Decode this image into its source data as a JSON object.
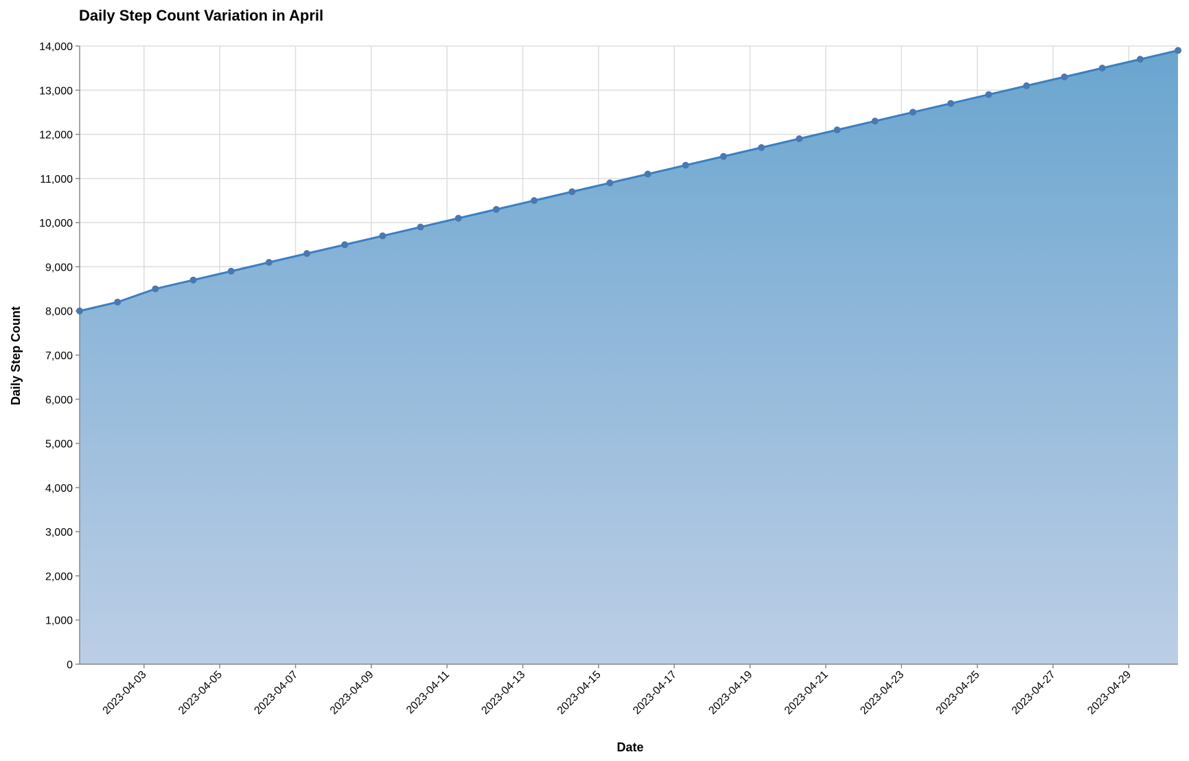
{
  "chart_data": {
    "type": "area",
    "title": "Daily Step Count Variation in April",
    "xlabel": "Date",
    "ylabel": "Daily Step Count",
    "ylim": [
      0,
      14000
    ],
    "y_ticks": [
      0,
      1000,
      2000,
      3000,
      4000,
      5000,
      6000,
      7000,
      8000,
      9000,
      10000,
      11000,
      12000,
      13000,
      14000
    ],
    "y_tick_labels": [
      "0",
      "1,000",
      "2,000",
      "3,000",
      "4,000",
      "5,000",
      "6,000",
      "7,000",
      "8,000",
      "9,000",
      "10,000",
      "11,000",
      "12,000",
      "13,000",
      "14,000"
    ],
    "x_tick_labels": [
      "2023-04-03",
      "2023-04-05",
      "2023-04-07",
      "2023-04-09",
      "2023-04-11",
      "2023-04-13",
      "2023-04-15",
      "2023-04-17",
      "2023-04-19",
      "2023-04-21",
      "2023-04-23",
      "2023-04-25",
      "2023-04-27",
      "2023-04-29"
    ],
    "grid": true,
    "x": [
      "2023-04-01",
      "2023-04-02",
      "2023-04-03",
      "2023-04-04",
      "2023-04-05",
      "2023-04-06",
      "2023-04-07",
      "2023-04-08",
      "2023-04-09",
      "2023-04-10",
      "2023-04-11",
      "2023-04-12",
      "2023-04-13",
      "2023-04-14",
      "2023-04-15",
      "2023-04-16",
      "2023-04-17",
      "2023-04-18",
      "2023-04-19",
      "2023-04-20",
      "2023-04-21",
      "2023-04-22",
      "2023-04-23",
      "2023-04-24",
      "2023-04-25",
      "2023-04-26",
      "2023-04-27",
      "2023-04-28",
      "2023-04-29",
      "2023-04-30"
    ],
    "values": [
      8000,
      8200,
      8500,
      8700,
      8900,
      9100,
      9300,
      9500,
      9700,
      9900,
      10100,
      10300,
      10500,
      10700,
      10900,
      11100,
      11300,
      11500,
      11700,
      11900,
      12100,
      12300,
      12500,
      12700,
      12900,
      13100,
      13300,
      13500,
      13700,
      13900
    ],
    "colors": {
      "line": "#3a7fbf",
      "point": "#4a78b0",
      "area_top": "#6aa5cf",
      "area_bottom": "#bccee6"
    }
  }
}
